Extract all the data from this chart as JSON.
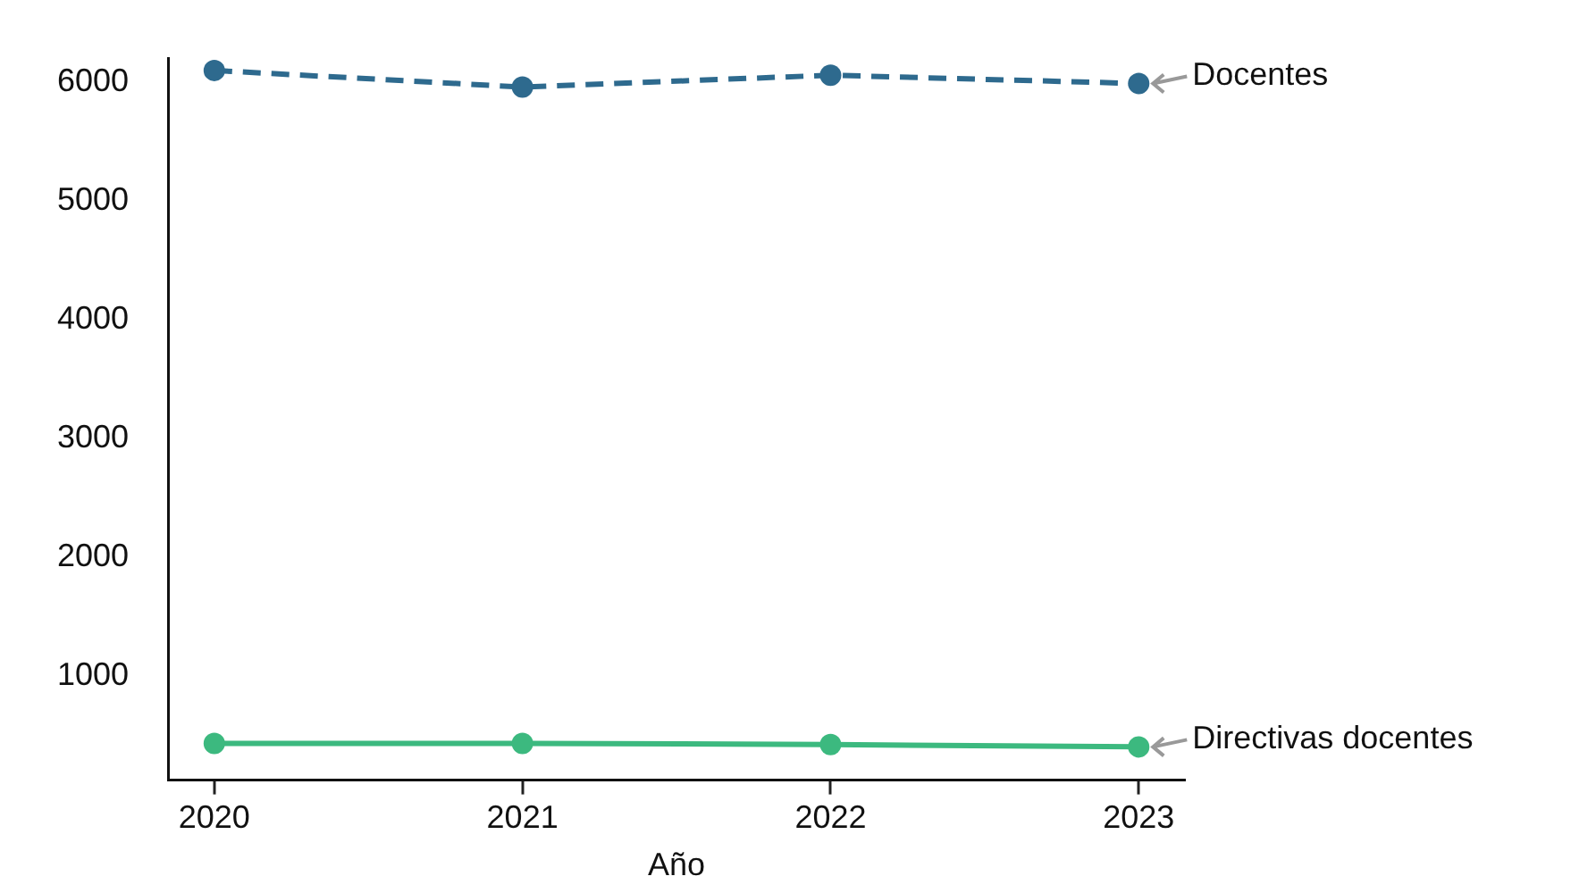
{
  "chart_data": {
    "type": "line",
    "xlabel": "Año",
    "x": [
      2020,
      2021,
      2022,
      2023
    ],
    "xlim": [
      2019.85,
      2023.15
    ],
    "xticks": [
      2020,
      2021,
      2022,
      2023
    ],
    "ylim": [
      120,
      6200
    ],
    "yticks": [
      1000,
      2000,
      3000,
      4000,
      5000,
      6000
    ],
    "grid": false,
    "legend": false,
    "marker": "circle",
    "series": [
      {
        "name": "Docentes",
        "color": "#2e6a8e",
        "values": [
          6100,
          5960,
          6060,
          5990
        ],
        "line_style": "dashed"
      },
      {
        "name": "Directivas docentes",
        "color": "#3cb97f",
        "values": [
          430,
          430,
          420,
          400
        ],
        "line_style": "solid"
      }
    ]
  }
}
